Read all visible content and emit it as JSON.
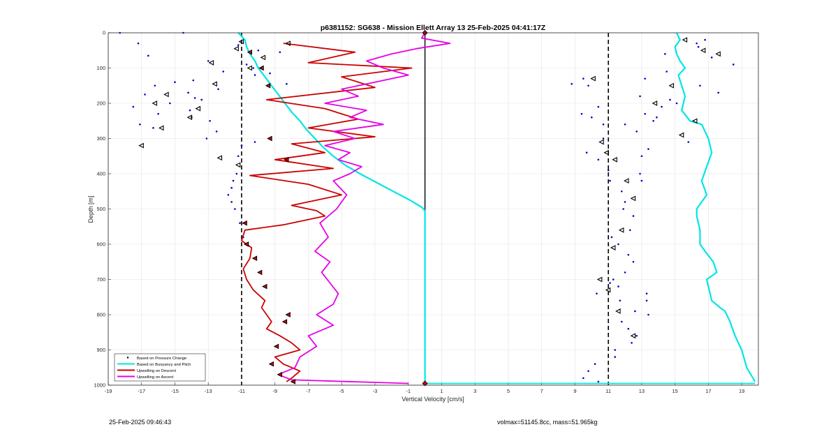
{
  "chart_data": {
    "type": "line",
    "title": "p6381152: SG638 - Mission Ellett Array 13 25-Feb-2025 04:41:17Z",
    "xlabel": "Vertical Velocity [cm/s]",
    "ylabel": "Depth [m]",
    "xlim": [
      -19,
      20
    ],
    "ylim": [
      0,
      1000
    ],
    "y_reversed": true,
    "xticks": [
      -19,
      -17,
      -15,
      -13,
      -11,
      -9,
      -7,
      -5,
      -3,
      -1,
      1,
      3,
      5,
      7,
      9,
      11,
      13,
      15,
      17,
      19
    ],
    "yticks": [
      0,
      100,
      200,
      300,
      400,
      500,
      600,
      700,
      800,
      900,
      1000
    ],
    "grid": true,
    "legend_placement": "bottom-left",
    "vlines": [
      {
        "x": -11,
        "style": "dashed",
        "color": "#000000"
      },
      {
        "x": 0,
        "style": "solid",
        "color": "#000000"
      },
      {
        "x": 11,
        "style": "dashed",
        "color": "#000000"
      }
    ],
    "series": [
      {
        "name": "Based on Pressure Change",
        "kind": "scatter",
        "color": "#0000cc",
        "x": [
          -18.3,
          -14.5,
          -17.2,
          -11.2,
          -10.0,
          -8.7,
          -16.6,
          -13.0,
          -10.7,
          -10.3,
          -12.1,
          -9.3,
          -10.2,
          -13.9,
          -15.0,
          -8.3,
          -16.2,
          -12.4,
          -14.2,
          -16.8,
          -13.8,
          -13.4,
          -15.3,
          -17.5,
          -14.1,
          -16.0,
          -14.0,
          -12.9,
          -17.1,
          -16.3,
          -12.5,
          -13.1,
          -10.2,
          -11.0,
          -11.2,
          -11.3,
          -11.5,
          -11.6,
          -11.8,
          -11.6,
          -11.4,
          -11.1,
          -10.9,
          9.5,
          8.8,
          9.8,
          10.4,
          9.4,
          10.0,
          10.7,
          10.7,
          9.7,
          10.4,
          11.0,
          11.1,
          11.8,
          12.0,
          11.9,
          12.5,
          12.3,
          11.2,
          11.6,
          12.2,
          12.5,
          12.0,
          11.1,
          10.3,
          11.7,
          12.6,
          13.4,
          11.8,
          12.2,
          12.7,
          12.4,
          11.4,
          11.4,
          10.2,
          9.8,
          9.5,
          10.4,
          11.3,
          11.6,
          13.3,
          13.3,
          16.8,
          16.4,
          14.4,
          18.5,
          16.3,
          17.2,
          14.5,
          13.2,
          16.5,
          17.6,
          14.7,
          15.1,
          13.2,
          13.7,
          12.7,
          12.9,
          14.2,
          13.9,
          12.0,
          15.8,
          13.4,
          13.0,
          12.9,
          13.0
        ],
        "y": [
          0,
          0,
          30,
          35,
          50,
          55,
          65,
          80,
          90,
          100,
          110,
          115,
          120,
          135,
          140,
          145,
          150,
          160,
          170,
          175,
          185,
          190,
          200,
          210,
          220,
          230,
          240,
          250,
          260,
          270,
          280,
          300,
          310,
          320,
          350,
          400,
          420,
          440,
          460,
          480,
          500,
          540,
          580,
          130,
          145,
          150,
          210,
          230,
          240,
          260,
          300,
          340,
          360,
          390,
          420,
          450,
          480,
          500,
          520,
          560,
          580,
          600,
          630,
          650,
          680,
          710,
          740,
          760,
          790,
          800,
          820,
          840,
          860,
          880,
          900,
          920,
          940,
          960,
          980,
          990,
          700,
          720,
          740,
          760,
          20,
          40,
          60,
          90,
          30,
          70,
          110,
          130,
          150,
          170,
          190,
          200,
          230,
          250,
          280,
          180,
          210,
          240,
          260,
          310,
          330,
          350,
          400,
          420
        ]
      },
      {
        "name": "Based on Buoyancy and Pitch",
        "kind": "line",
        "color": "#00e5e5",
        "desc_x": [
          -11.2,
          -10.8,
          -10.7,
          -10.5,
          -10.2,
          -10.0,
          -9.6,
          -9.2,
          -8.8,
          -8.4,
          -8.0,
          -7.5,
          -7.1,
          -6.6,
          -6.1,
          -5.5,
          -4.8,
          -3.9,
          -2.9,
          -1.9,
          -0.9,
          -0.2,
          0.0,
          0.0,
          0.0
        ],
        "desc_y": [
          0,
          20,
          40,
          60,
          80,
          100,
          125,
          150,
          175,
          200,
          225,
          250,
          275,
          300,
          325,
          350,
          375,
          400,
          425,
          450,
          475,
          495,
          505,
          800,
          995
        ],
        "asc_x": [
          19.8,
          19.3,
          19.0,
          18.6,
          18.3,
          18.0,
          17.7,
          17.2,
          17.0,
          16.9,
          17.5,
          17.3,
          16.8,
          16.5,
          16.5,
          16.3,
          16.3,
          16.9,
          16.6,
          16.9,
          17.2,
          17.0,
          16.6,
          15.9,
          15.4,
          15.6,
          15.4,
          15.2,
          15.6,
          15.3,
          15.1,
          15.0,
          15.3,
          15.1
        ],
        "asc_y": [
          990,
          950,
          900,
          860,
          820,
          790,
          780,
          760,
          720,
          700,
          680,
          650,
          620,
          600,
          560,
          520,
          500,
          460,
          420,
          380,
          340,
          300,
          260,
          250,
          220,
          180,
          150,
          120,
          100,
          80,
          60,
          40,
          20,
          0
        ]
      },
      {
        "name": "Upwelling on Descent",
        "kind": "line",
        "color": "#cc0000",
        "x": [
          -8.5,
          -4.2,
          -7.0,
          -0.8,
          -5.0,
          -3.0,
          -9.5,
          -6.0,
          -4.0,
          -7.0,
          -3.0,
          -8.0,
          -6.0,
          -9.0,
          -5.5,
          -10.5,
          -7.0,
          -5.0,
          -8.0,
          -6.5,
          -6.0,
          -8.5,
          -10.8,
          -11.0,
          -10.4,
          -10.5,
          -10.9,
          -10.7,
          -10.3,
          -9.6,
          -9.8,
          -9.5,
          -9.2,
          -9.5,
          -8.7,
          -8.0,
          -7.5,
          -9.0,
          -8.5,
          -7.5,
          -8.0,
          -8.3
        ],
        "y": [
          30,
          55,
          85,
          100,
          125,
          155,
          190,
          215,
          245,
          270,
          295,
          315,
          340,
          360,
          385,
          405,
          430,
          460,
          490,
          505,
          520,
          545,
          560,
          590,
          610,
          640,
          670,
          700,
          730,
          760,
          780,
          800,
          820,
          840,
          860,
          880,
          900,
          920,
          940,
          960,
          980,
          990
        ]
      },
      {
        "name": "Upwelling on Ascent",
        "kind": "line",
        "color": "#e600e6",
        "x": [
          0.0,
          -0.2,
          1.5,
          -0.5,
          -2.0,
          -3.5,
          -2.5,
          -1.0,
          -3.0,
          -5.0,
          -4.0,
          -6.0,
          -3.5,
          -4.5,
          -2.5,
          -5.5,
          -4.2,
          -6.0,
          -4.5,
          -5.2,
          -3.8,
          -4.5,
          -5.5,
          -4.7,
          -5.3,
          -6.3,
          -5.8,
          -6.6,
          -5.7,
          -6.2,
          -5.7,
          -5.2,
          -5.5,
          -6.5,
          -5.5,
          -7.0,
          -6.5,
          -7.5,
          -7.8,
          -8.8,
          -8.0,
          -1.0
        ],
        "y": [
          0,
          15,
          30,
          45,
          60,
          80,
          100,
          120,
          140,
          160,
          180,
          200,
          220,
          240,
          260,
          280,
          300,
          320,
          340,
          360,
          380,
          400,
          420,
          460,
          500,
          540,
          580,
          620,
          650,
          680,
          710,
          740,
          770,
          800,
          830,
          860,
          890,
          920,
          950,
          970,
          985,
          995
        ]
      }
    ],
    "markers": {
      "descent_x": [
        -10.5,
        -9.8,
        -9.4,
        -9.3,
        -10.8,
        -10.7,
        -10.2,
        -9.9,
        -9.6,
        -8.2,
        -8.4,
        -8.9,
        -9.2,
        -8.7,
        -7.9,
        -8.3
      ],
      "descent_y": [
        55,
        100,
        150,
        300,
        540,
        600,
        640,
        680,
        720,
        800,
        820,
        890,
        940,
        970,
        990,
        360
      ],
      "ascent_x": [
        -11.0,
        -8.2,
        -9.7,
        -11.3,
        -10.5,
        -15.5,
        -16.2,
        -12.6,
        -14.1,
        -15.8,
        -17.0,
        -12.3,
        -11.2,
        -12.8,
        -13.6,
        10.1,
        10.6,
        10.9,
        11.4,
        12.1,
        12.5,
        11.8,
        11.3,
        10.5,
        11.0,
        11.6,
        12.5,
        16.7,
        15.6,
        17.6,
        14.8,
        13.8,
        15.4,
        16.2
      ],
      "ascent_y": [
        25,
        30,
        70,
        45,
        100,
        175,
        200,
        145,
        240,
        270,
        320,
        355,
        375,
        85,
        215,
        130,
        310,
        340,
        360,
        420,
        470,
        560,
        610,
        700,
        730,
        790,
        860,
        50,
        20,
        60,
        150,
        200,
        290,
        250
      ]
    }
  },
  "legend": {
    "entries": [
      "Based on Pressure Change",
      "Based on Buoyancy and Pitch",
      "Upwelling on Descent",
      "Upwelling on Ascent"
    ]
  },
  "footer": {
    "timestamp": "25-Feb-2025 09:46:43",
    "stats": "volmax=51145.8cc, mass=51.965kg"
  }
}
